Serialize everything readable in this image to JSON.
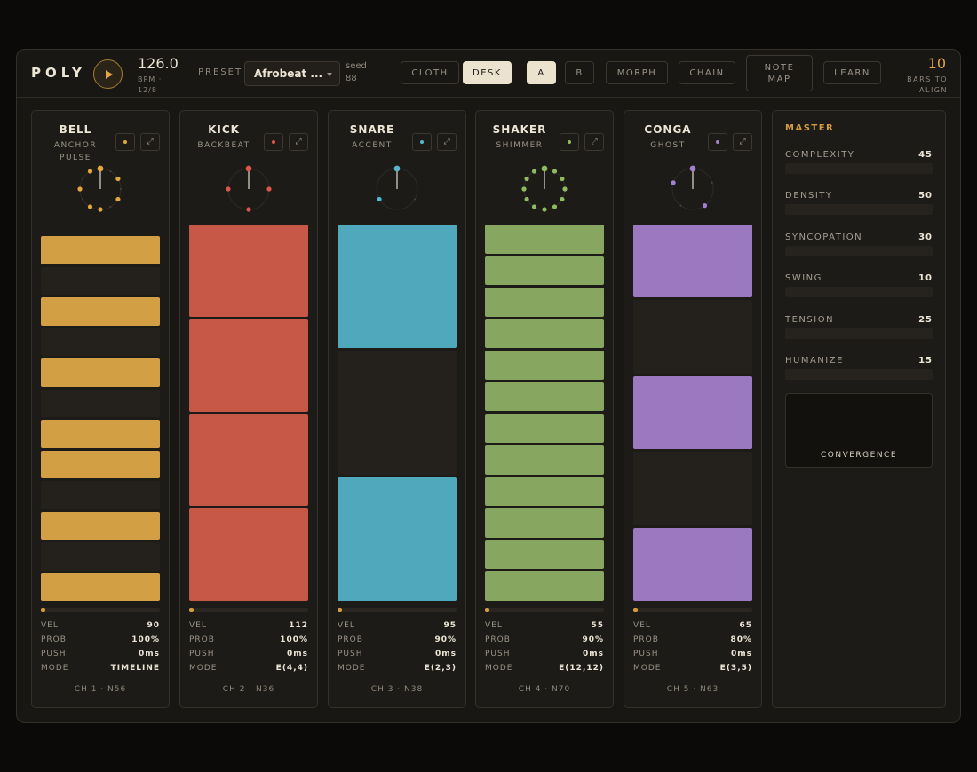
{
  "app": {
    "logo": "POLY"
  },
  "transport": {
    "bpm": "126.0",
    "bpm_label": "BPM · 12/8"
  },
  "preset": {
    "label": "PRESET",
    "value": "Afrobeat ...",
    "seed_label": "seed",
    "seed_value": "88"
  },
  "view_tabs": [
    {
      "label": "CLOTH",
      "active": false
    },
    {
      "label": "DESK",
      "active": true
    }
  ],
  "variation_tabs": [
    {
      "label": "A",
      "active": true
    },
    {
      "label": "B",
      "active": false
    }
  ],
  "tools": {
    "morph": "MORPH",
    "chain": "CHAIN",
    "note_map": "NOTE MAP",
    "learn": "LEARN"
  },
  "bars": {
    "value": "10",
    "label": "BARS TO ALIGN"
  },
  "tracks": [
    {
      "name": "BELL",
      "sub": "ANCHOR PULSE",
      "color": "#d39f45",
      "dot_color": "#e3a640",
      "pattern": [
        1,
        0,
        1,
        0,
        1,
        0,
        1,
        1,
        0,
        1,
        0,
        1
      ],
      "progress": 0.03,
      "vel": "90",
      "prob": "100%",
      "push": "0ms",
      "mode": "TIMELINE",
      "footer": "CH 1 · N56"
    },
    {
      "name": "KICK",
      "sub": "BACKBEAT",
      "color": "#c75848",
      "dot_color": "#d8574a",
      "pattern": [
        1,
        1,
        1,
        1
      ],
      "progress": 0.03,
      "vel": "112",
      "prob": "100%",
      "push": "0ms",
      "mode": "E(4,4)",
      "footer": "CH 2 · N36"
    },
    {
      "name": "SNARE",
      "sub": "ACCENT",
      "color": "#4fa8bb",
      "dot_color": "#53b7cf",
      "pattern": [
        1,
        0,
        1
      ],
      "progress": 0.03,
      "vel": "95",
      "prob": "90%",
      "push": "0ms",
      "mode": "E(2,3)",
      "footer": "CH 3 · N38"
    },
    {
      "name": "SHAKER",
      "sub": "SHIMMER",
      "color": "#87a65f",
      "dot_color": "#8fba5e",
      "pattern": [
        1,
        1,
        1,
        1,
        1,
        1,
        1,
        1,
        1,
        1,
        1,
        1
      ],
      "progress": 0.03,
      "vel": "55",
      "prob": "90%",
      "push": "0ms",
      "mode": "E(12,12)",
      "footer": "CH 4 · N70"
    },
    {
      "name": "CONGA",
      "sub": "GHOST",
      "color": "#9b78bf",
      "dot_color": "#a27fcf",
      "pattern": [
        1,
        0,
        1,
        0,
        1
      ],
      "progress": 0.03,
      "vel": "65",
      "prob": "80%",
      "push": "0ms",
      "mode": "E(3,5)",
      "footer": "CH 5 · N63"
    }
  ],
  "stat_labels": {
    "vel": "VEL",
    "prob": "PROB",
    "push": "PUSH",
    "mode": "MODE"
  },
  "master": {
    "title": "MASTER",
    "params": [
      {
        "label": "COMPLEXITY",
        "value": "45"
      },
      {
        "label": "DENSITY",
        "value": "50"
      },
      {
        "label": "SYNCOPATION",
        "value": "30"
      },
      {
        "label": "SWING",
        "value": "10"
      },
      {
        "label": "TENSION",
        "value": "25"
      },
      {
        "label": "HUMANIZE",
        "value": "15"
      }
    ],
    "convergence_label": "CONVERGENCE"
  }
}
